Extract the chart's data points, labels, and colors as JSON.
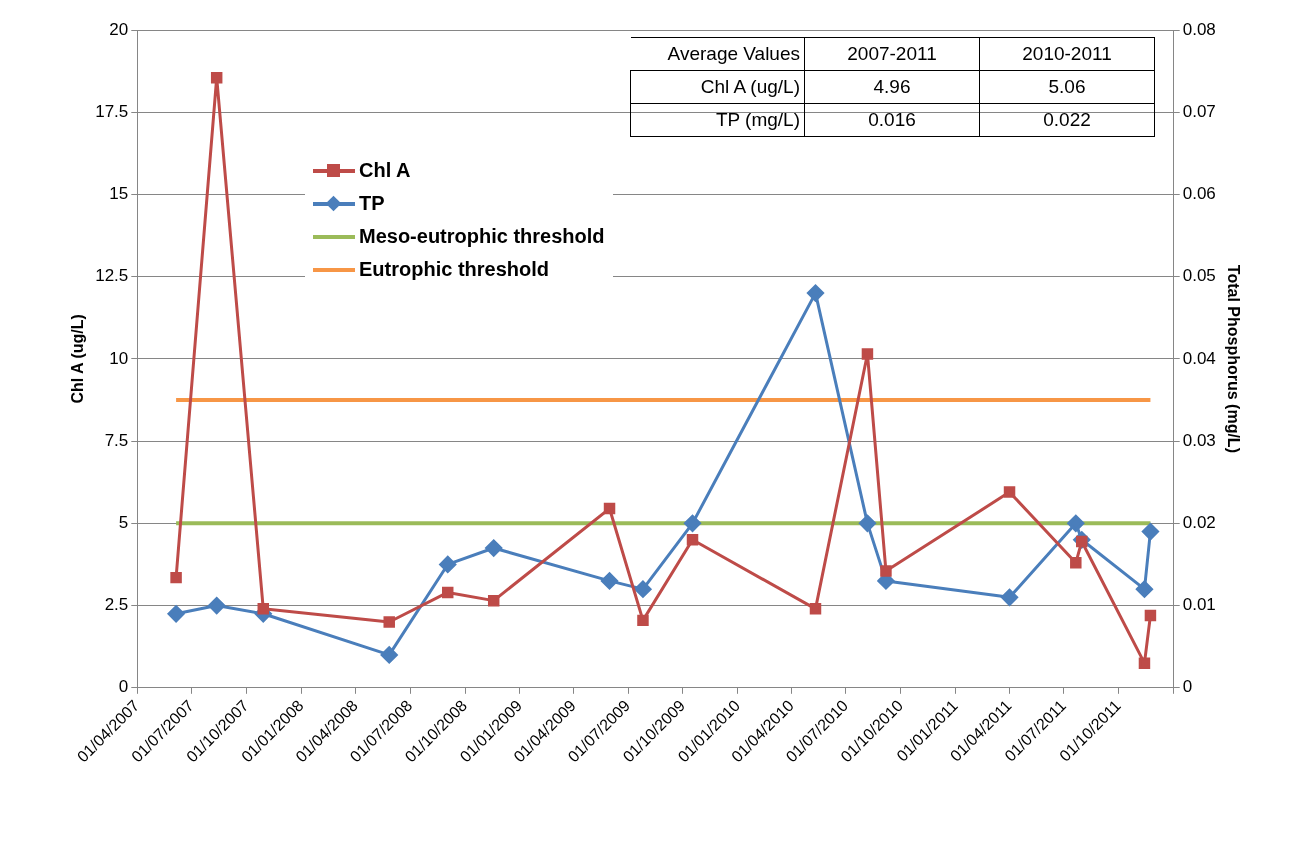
{
  "chart_data": {
    "type": "line",
    "xlabel": null,
    "ylabel": "Chl A (ug/L)",
    "y2label": "Total Phosphorus (mg/L)",
    "xlim": [
      "2007-04-01",
      "2012-01-01"
    ],
    "xticks": [
      {
        "value": "2007-04-01",
        "label": "01/04/2007"
      },
      {
        "value": "2007-07-01",
        "label": "01/07/2007"
      },
      {
        "value": "2007-10-01",
        "label": "01/10/2007"
      },
      {
        "value": "2008-01-01",
        "label": "01/01/2008"
      },
      {
        "value": "2008-04-01",
        "label": "01/04/2008"
      },
      {
        "value": "2008-07-01",
        "label": "01/07/2008"
      },
      {
        "value": "2008-10-01",
        "label": "01/10/2008"
      },
      {
        "value": "2009-01-01",
        "label": "01/01/2009"
      },
      {
        "value": "2009-04-01",
        "label": "01/04/2009"
      },
      {
        "value": "2009-07-01",
        "label": "01/07/2009"
      },
      {
        "value": "2009-10-01",
        "label": "01/10/2009"
      },
      {
        "value": "2010-01-01",
        "label": "01/01/2010"
      },
      {
        "value": "2010-04-01",
        "label": "01/04/2010"
      },
      {
        "value": "2010-07-01",
        "label": "01/07/2010"
      },
      {
        "value": "2010-10-01",
        "label": "01/10/2010"
      },
      {
        "value": "2011-01-01",
        "label": "01/01/2011"
      },
      {
        "value": "2011-04-01",
        "label": "01/04/2011"
      },
      {
        "value": "2011-07-01",
        "label": "01/07/2011"
      },
      {
        "value": "2011-10-01",
        "label": "01/10/2011"
      },
      {
        "value": "2012-01-01",
        "label": null
      }
    ],
    "ylim": [
      0,
      20
    ],
    "yticks": [
      0,
      2.5,
      5,
      7.5,
      10,
      12.5,
      15,
      17.5,
      20
    ],
    "y2lim": [
      0,
      0.08
    ],
    "y2ticks": [
      0,
      0.01,
      0.02,
      0.03,
      0.04,
      0.05,
      0.06,
      0.07,
      0.08
    ],
    "grid": "y",
    "legend": "top left",
    "line_style": "solid",
    "series": [
      {
        "name": "Chl A",
        "color": "#be4b48",
        "marker": "square",
        "x": [
          "2007-06-05",
          "2007-08-12",
          "2007-10-29",
          "2008-05-27",
          "2008-09-02",
          "2008-11-18",
          "2009-05-31",
          "2009-07-26",
          "2009-10-17",
          "2010-05-11",
          "2010-08-06",
          "2010-09-06",
          "2011-04-01",
          "2011-07-21",
          "2011-07-31",
          "2011-11-13",
          "2011-11-23"
        ],
        "values": [
          3.35,
          18.55,
          2.4,
          2.0,
          2.9,
          2.65,
          5.45,
          2.05,
          4.5,
          2.4,
          10.15,
          3.55,
          5.95,
          3.8,
          4.45,
          0.75,
          2.2
        ]
      },
      {
        "name": "TP",
        "color": "#4a7ebb",
        "marker": "diamond",
        "axis": "y2",
        "x": [
          "2007-06-05",
          "2007-08-12",
          "2007-10-29",
          "2008-05-27",
          "2008-09-02",
          "2008-11-18",
          "2009-05-31",
          "2009-07-26",
          "2009-10-17",
          "2010-05-11",
          "2010-08-06",
          "2010-09-06",
          "2011-04-01",
          "2011-07-21",
          "2011-07-31",
          "2011-11-13",
          "2011-11-23"
        ],
        "values": [
          0.009,
          0.01,
          0.009,
          0.004,
          0.015,
          0.017,
          0.013,
          0.012,
          0.02,
          0.048,
          0.02,
          0.013,
          0.011,
          0.02,
          0.018,
          0.012,
          0.019
        ]
      },
      {
        "name": "Meso-eutrophic threshold",
        "color": "#9bbb59",
        "marker": "none",
        "axis": "y2",
        "x": [
          "2007-06-05",
          "2011-11-23"
        ],
        "values": [
          0.02,
          0.02
        ]
      },
      {
        "name": "Eutrophic threshold",
        "color": "#f79646",
        "marker": "none",
        "axis": "y2",
        "x": [
          "2007-06-05",
          "2011-11-23"
        ],
        "values": [
          0.035,
          0.035
        ]
      }
    ],
    "annotations": [
      "Average Values",
      "2007-2011",
      "2010-2011",
      "Chl A (ug/L)",
      "4.96",
      "5.06",
      "TP (mg/L)",
      "0.016",
      "0.022"
    ]
  }
}
